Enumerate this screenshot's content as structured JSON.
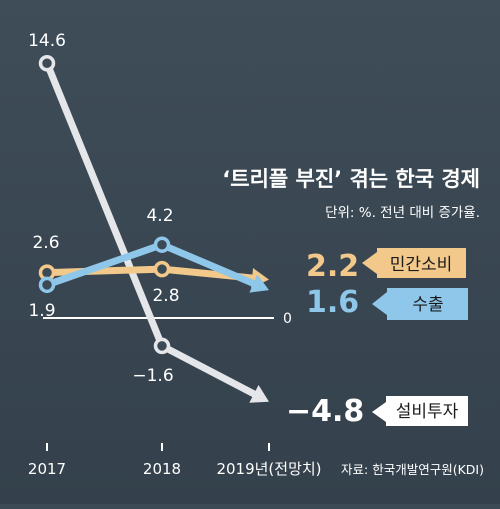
{
  "chart_data": {
    "type": "line",
    "title": "‘트리플 부진’ 겪는 한국 경제",
    "subtitle": "단위: %. 전년 대비 증가율.",
    "source": "자료: 한국개발연구원(KDI)",
    "categories": [
      "2017",
      "2018",
      "2019년(전망치)"
    ],
    "zero_label": "0",
    "series": [
      {
        "name": "민간소비",
        "values": [
          2.6,
          2.8,
          2.2
        ],
        "labels": [
          "2.6",
          "2.8",
          "2.2"
        ],
        "color": "#f2c98a"
      },
      {
        "name": "수출",
        "values": [
          1.9,
          4.2,
          1.6
        ],
        "labels": [
          "1.9",
          "4.2",
          "1.6"
        ],
        "color": "#8ec7ea"
      },
      {
        "name": "설비투자",
        "values": [
          14.6,
          -1.6,
          -4.8
        ],
        "labels": [
          "14.6",
          "−1.6",
          "−4.8"
        ],
        "color": "#e4e6e9"
      }
    ],
    "colors": {
      "background": "#3c4a56",
      "label_text": "#ffffff",
      "consumption_box": "#f2c98a",
      "export_box": "#8ec7ea",
      "investment_box": "#ffffff"
    }
  }
}
